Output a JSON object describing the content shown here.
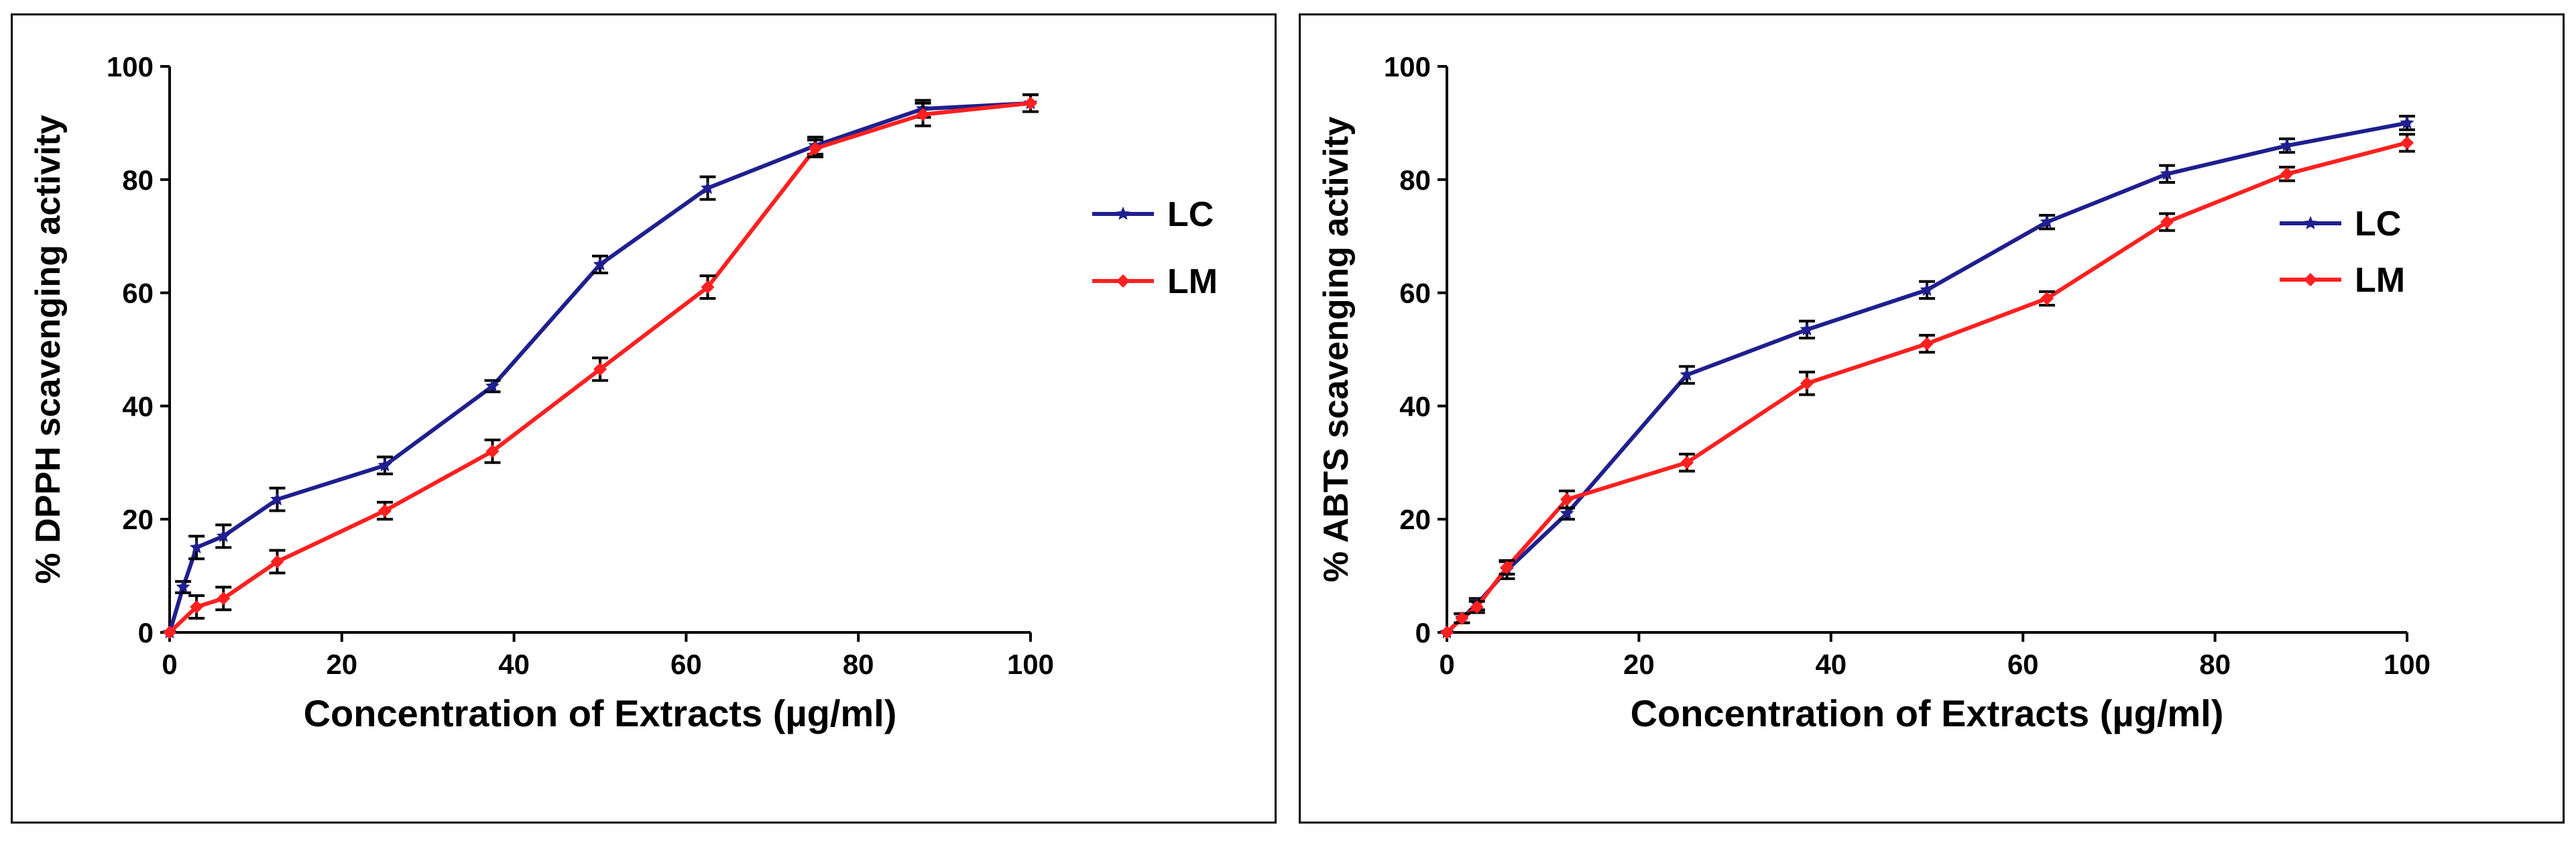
{
  "chart_data": [
    {
      "type": "line",
      "title": "",
      "xlabel": "Concentration of Extracts (µg/ml)",
      "ylabel": "% DPPH scavenging activity",
      "xlim": [
        0,
        100
      ],
      "ylim": [
        0,
        100
      ],
      "xticks": [
        0,
        20,
        40,
        60,
        80,
        100
      ],
      "yticks": [
        0,
        20,
        40,
        60,
        80,
        100
      ],
      "legend_position": "right",
      "series": [
        {
          "name": "LC",
          "color": "#1f1f8f",
          "marker": "star",
          "x": [
            0,
            1.5625,
            3.125,
            6.25,
            12.5,
            25,
            37.5,
            50,
            62.5,
            75,
            87.5,
            100
          ],
          "y": [
            0,
            8,
            15,
            17,
            23.5,
            29.5,
            43.5,
            65,
            78.5,
            86,
            92.5,
            93.5
          ],
          "err": [
            0,
            1,
            2,
            2,
            2,
            1.5,
            1,
            1.5,
            2,
            1.5,
            1.5,
            1.5
          ]
        },
        {
          "name": "LM",
          "color": "#ff2020",
          "marker": "diamond",
          "x": [
            0,
            3.125,
            6.25,
            12.5,
            25,
            37.5,
            50,
            62.5,
            75,
            87.5,
            100
          ],
          "y": [
            0,
            4.5,
            6,
            12.5,
            21.5,
            32,
            46.5,
            61,
            85.5,
            91.5,
            93.5
          ],
          "err": [
            0,
            2,
            2,
            2,
            1.5,
            2,
            2,
            2,
            1.5,
            2,
            1.5
          ]
        }
      ]
    },
    {
      "type": "line",
      "title": "",
      "xlabel": "Concentration of Extracts (µg/ml)",
      "ylabel": "% ABTS scavenging activity",
      "xlim": [
        0,
        100
      ],
      "ylim": [
        0,
        100
      ],
      "xticks": [
        0,
        20,
        40,
        60,
        80,
        100
      ],
      "yticks": [
        0,
        20,
        40,
        60,
        80,
        100
      ],
      "legend_position": "right",
      "series": [
        {
          "name": "LC",
          "color": "#1f1f8f",
          "marker": "star",
          "x": [
            0,
            1.5625,
            3.125,
            6.25,
            12.5,
            25,
            37.5,
            50,
            62.5,
            75,
            87.5,
            100
          ],
          "y": [
            0,
            2.5,
            5,
            11,
            21,
            45.5,
            53.5,
            60.5,
            72.5,
            81,
            86,
            90
          ],
          "err": [
            0,
            0.8,
            1,
            1.5,
            1,
            1.5,
            1.5,
            1.5,
            1.2,
            1.5,
            1.2,
            1.2
          ]
        },
        {
          "name": "LM",
          "color": "#ff2020",
          "marker": "diamond",
          "x": [
            0,
            1.5625,
            3.125,
            6.25,
            12.5,
            25,
            37.5,
            50,
            62.5,
            75,
            87.5,
            100
          ],
          "y": [
            0,
            2.5,
            4.5,
            11.5,
            23.5,
            30,
            44,
            51,
            59,
            72.5,
            81,
            86.5
          ],
          "err": [
            0,
            0.8,
            1,
            1.2,
            1.5,
            1.5,
            2,
            1.5,
            1.2,
            1.5,
            1.2,
            1.5
          ]
        }
      ]
    }
  ]
}
